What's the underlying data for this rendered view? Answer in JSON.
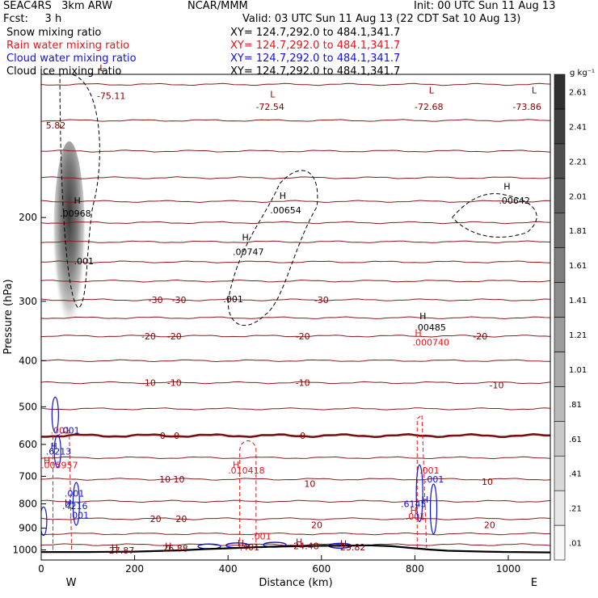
{
  "header": {
    "model": "SEAC4RS   3km ARW",
    "forecast": "Fcst:     3 h",
    "org": "NCAR/MMM",
    "init": "Init: 00 UTC Sun 11 Aug 13",
    "valid": "Valid: 03 UTC Sun 11 Aug 13 (22 CDT Sat 10 Aug 13)",
    "fields": [
      {
        "name": "Snow mixing ratio",
        "xy": "XY= 124.7,292.0 to 484.1,341.7",
        "color": "#000000"
      },
      {
        "name": "Rain water mixing ratio",
        "xy": "XY= 124.7,292.0 to 484.1,341.7",
        "color": "#e8141b"
      },
      {
        "name": "Cloud water mixing ratio",
        "xy": "XY= 124.7,292.0 to 484.1,341.7",
        "color": "#1010d8"
      },
      {
        "name": "Cloud ice mixing ratio",
        "xy": "XY= 124.7,292.0 to 484.1,341.7",
        "color": "#000000"
      }
    ]
  },
  "chart_data": {
    "type": "cross-section contour",
    "xlabel": "Distance (km)",
    "ylabel": "Pressure (hPa)",
    "xlim": [
      0,
      1090
    ],
    "ylim": [
      1050,
      100
    ],
    "y_scale": "log",
    "x_ticks": [
      0,
      200,
      400,
      600,
      800,
      1000
    ],
    "y_ticks": [
      200,
      300,
      400,
      500,
      600,
      700,
      800,
      900,
      1000
    ],
    "end_labels": [
      "W",
      "E"
    ],
    "colorbar": {
      "unit": "g kg⁻¹",
      "labels": [
        ".01",
        ".21",
        ".41",
        ".61",
        ".81",
        "1.01",
        "1.21",
        "1.41",
        "1.61",
        "1.81",
        "2.01",
        "2.21",
        "2.41",
        "2.61"
      ],
      "bounds": [
        0.01,
        2.81
      ],
      "colors": {
        "low": "#f7f7f7",
        "high": "#303030"
      }
    },
    "temperature_contours": [
      {
        "p": 105,
        "label": "",
        "bold": false
      },
      {
        "p": 125,
        "label": "",
        "bold": false
      },
      {
        "p": 145,
        "label": "",
        "bold": false
      },
      {
        "p": 165,
        "label": "",
        "bold": false
      },
      {
        "p": 185,
        "label": "",
        "bold": false
      },
      {
        "p": 205,
        "label": "",
        "bold": false
      },
      {
        "p": 225,
        "label": "",
        "bold": false
      },
      {
        "p": 248,
        "label": "",
        "bold": false
      },
      {
        "p": 272,
        "label": "",
        "bold": false
      },
      {
        "p": 298,
        "label": "-30",
        "label_x": [
          245,
          640
        ],
        "bold": false
      },
      {
        "p": 325,
        "label": "",
        "bold": false
      },
      {
        "p": 355,
        "label": "-20",
        "label_x": [
          230,
          640
        ],
        "bold": false
      },
      {
        "p": 400,
        "label": "",
        "bold": false
      },
      {
        "p": 445,
        "label": "-10",
        "label_x": [
          230,
          690
        ],
        "bold": false
      },
      {
        "p": 505,
        "label": "",
        "bold": false
      },
      {
        "p": 575,
        "label": "0",
        "label_x": [
          235,
          520
        ],
        "bold": true
      },
      {
        "p": 640,
        "label": "",
        "bold": false
      },
      {
        "p": 710,
        "label": "10",
        "label_x": [
          225,
          680
        ],
        "bold": false
      },
      {
        "p": 790,
        "label": "",
        "bold": false
      },
      {
        "p": 860,
        "label": "20",
        "label_x": [
          235,
          680
        ],
        "bold": false
      },
      {
        "p": 925,
        "label": "",
        "bold": false
      },
      {
        "p": 975,
        "label": "",
        "bold": false
      }
    ],
    "temperature_labels": [
      {
        "text": "-75.11",
        "x": 150,
        "p": 111
      },
      {
        "text": "-72.54",
        "x": 490,
        "p": 117
      },
      {
        "text": "-72.68",
        "x": 830,
        "p": 117
      },
      {
        "text": "-73.86",
        "x": 1040,
        "p": 117
      },
      {
        "text": "-30",
        "x": 245,
        "p": 298
      },
      {
        "text": "-30",
        "x": 295,
        "p": 298
      },
      {
        "text": "-30",
        "x": 600,
        "p": 298
      },
      {
        "text": "-20",
        "x": 230,
        "p": 355
      },
      {
        "text": "-20",
        "x": 285,
        "p": 355
      },
      {
        "text": "-20",
        "x": 560,
        "p": 355
      },
      {
        "text": "-20",
        "x": 940,
        "p": 355
      },
      {
        "text": "-10",
        "x": 230,
        "p": 445
      },
      {
        "text": "-10",
        "x": 285,
        "p": 445
      },
      {
        "text": "-10",
        "x": 560,
        "p": 445
      },
      {
        "text": "-10",
        "x": 975,
        "p": 450
      },
      {
        "text": "0",
        "x": 260,
        "p": 575
      },
      {
        "text": "0",
        "x": 290,
        "p": 575
      },
      {
        "text": "0",
        "x": 560,
        "p": 575
      },
      {
        "text": "10",
        "x": 265,
        "p": 710
      },
      {
        "text": "10",
        "x": 295,
        "p": 710
      },
      {
        "text": "10",
        "x": 575,
        "p": 725
      },
      {
        "text": "10",
        "x": 955,
        "p": 718
      },
      {
        "text": "20",
        "x": 245,
        "p": 860
      },
      {
        "text": "20",
        "x": 300,
        "p": 860
      },
      {
        "text": "20",
        "x": 590,
        "p": 885
      },
      {
        "text": "20",
        "x": 960,
        "p": 885
      }
    ],
    "annotations": [
      {
        "text": "5.82",
        "x": 10,
        "p": 128,
        "color": "#8b0000"
      },
      {
        "text": "L",
        "x": 125,
        "p": 97,
        "color": "#8b0000"
      },
      {
        "text": "L",
        "x": 490,
        "p": 110,
        "color": "#8b0000"
      },
      {
        "text": "L",
        "x": 830,
        "p": 108,
        "color": "#8b0000"
      },
      {
        "text": "L",
        "x": 1050,
        "p": 108,
        "color": "#8b0000"
      },
      {
        "text": "H",
        "x": 70,
        "p": 184,
        "color": "#000000"
      },
      {
        "text": ".00968",
        "x": 40,
        "p": 196,
        "color": "#000000"
      },
      {
        "text": ".001",
        "x": 70,
        "p": 247,
        "color": "#000000"
      },
      {
        "text": "H",
        "x": 510,
        "p": 180,
        "color": "#000000"
      },
      {
        "text": ".00654",
        "x": 490,
        "p": 193,
        "color": "#000000"
      },
      {
        "text": "H",
        "x": 430,
        "p": 220,
        "color": "#000000"
      },
      {
        "text": ".00747",
        "x": 410,
        "p": 236,
        "color": "#000000"
      },
      {
        "text": ".001",
        "x": 390,
        "p": 297,
        "color": "#000000"
      },
      {
        "text": "H",
        "x": 990,
        "p": 172,
        "color": "#000000"
      },
      {
        "text": ".00642",
        "x": 980,
        "p": 184,
        "color": "#000000"
      },
      {
        "text": "H",
        "x": 810,
        "p": 322,
        "color": "#000000"
      },
      {
        "text": ".00485",
        "x": 800,
        "p": 340,
        "color": "#000000"
      },
      {
        "text": "H",
        "x": 800,
        "p": 350,
        "color": "#e8141b"
      },
      {
        "text": ".000740",
        "x": 795,
        "p": 366,
        "color": "#e8141b"
      },
      {
        "text": ".001",
        "x": 20,
        "p": 560,
        "color": "#e8141b"
      },
      {
        "text": ".001",
        "x": 40,
        "p": 560,
        "color": "#1010d8"
      },
      {
        "text": "H",
        "x": 20,
        "p": 605,
        "color": "#1010d8"
      },
      {
        "text": ".6213",
        "x": 10,
        "p": 620,
        "color": "#1010d8"
      },
      {
        "text": "H",
        "x": 5,
        "p": 648,
        "color": "#e8141b"
      },
      {
        "text": ".005957",
        "x": 0,
        "p": 663,
        "color": "#e8141b"
      },
      {
        "text": "H",
        "x": 410,
        "p": 662,
        "color": "#e8141b"
      },
      {
        "text": ".010418",
        "x": 400,
        "p": 680,
        "color": "#e8141b"
      },
      {
        "text": ".001",
        "x": 450,
        "p": 935,
        "color": "#e8141b"
      },
      {
        "text": ".001",
        "x": 50,
        "p": 760,
        "color": "#1010d8"
      },
      {
        "text": "H",
        "x": 50,
        "p": 795,
        "color": "#1010d8"
      },
      {
        "text": ".4216",
        "x": 45,
        "p": 808,
        "color": "#1010d8"
      },
      {
        "text": ".001",
        "x": 60,
        "p": 845,
        "color": "#1010d8"
      },
      {
        "text": ".001",
        "x": 810,
        "p": 680,
        "color": "#e8141b"
      },
      {
        "text": ".001",
        "x": 820,
        "p": 710,
        "color": "#1010d8"
      },
      {
        "text": "H",
        "x": 815,
        "p": 783,
        "color": "#1010d8"
      },
      {
        "text": ".6145",
        "x": 770,
        "p": 800,
        "color": "#1010d8"
      },
      {
        "text": ".001",
        "x": 780,
        "p": 850,
        "color": "#e8141b"
      },
      {
        "text": "H",
        "x": 790,
        "p": 825,
        "color": "#e8141b"
      },
      {
        "text": "H",
        "x": 150,
        "p": 988,
        "color": "#8b0000"
      },
      {
        "text": "27.87",
        "x": 145,
        "p": 1002,
        "color": "#8b0000"
      },
      {
        "text": "H",
        "x": 265,
        "p": 980,
        "color": "#8b0000"
      },
      {
        "text": "26.88",
        "x": 260,
        "p": 993,
        "color": "#8b0000"
      },
      {
        "text": "H",
        "x": 420,
        "p": 967,
        "color": "#8b0000"
      },
      {
        "text": ".401",
        "x": 425,
        "p": 987,
        "color": "#8b0000"
      },
      {
        "text": "H",
        "x": 545,
        "p": 962,
        "color": "#8b0000"
      },
      {
        "text": "24.48",
        "x": 540,
        "p": 980,
        "color": "#8b0000"
      },
      {
        "text": "H",
        "x": 640,
        "p": 970,
        "color": "#8b0000"
      },
      {
        "text": "23.82",
        "x": 640,
        "p": 987,
        "color": "#8b0000"
      }
    ],
    "terrain_p": [
      [
        0,
        1010
      ],
      [
        100,
        1010
      ],
      [
        200,
        1008
      ],
      [
        300,
        1002
      ],
      [
        350,
        996
      ],
      [
        400,
        992
      ],
      [
        450,
        988
      ],
      [
        500,
        984
      ],
      [
        550,
        982
      ],
      [
        600,
        980
      ],
      [
        650,
        980
      ],
      [
        700,
        978
      ],
      [
        750,
        982
      ],
      [
        790,
        990
      ],
      [
        830,
        998
      ],
      [
        870,
        1004
      ],
      [
        950,
        1008
      ],
      [
        1000,
        1010
      ],
      [
        1090,
        1012
      ]
    ]
  }
}
